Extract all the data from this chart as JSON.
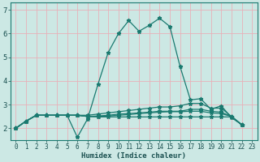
{
  "title": "",
  "xlabel": "Humidex (Indice chaleur)",
  "bg_color": "#cce8e4",
  "grid_color": "#e8b0b8",
  "line_color": "#1a7a70",
  "x_ticks": [
    0,
    1,
    2,
    3,
    4,
    5,
    6,
    7,
    8,
    9,
    10,
    11,
    12,
    13,
    14,
    15,
    16,
    17,
    18,
    19,
    20,
    21,
    22,
    23
  ],
  "ylim": [
    1.5,
    7.3
  ],
  "xlim": [
    -0.5,
    23.5
  ],
  "lines": [
    [
      2.0,
      2.3,
      2.55,
      2.55,
      2.55,
      2.55,
      1.62,
      2.4,
      3.85,
      5.2,
      6.0,
      6.55,
      6.1,
      6.35,
      6.65,
      6.3,
      4.6,
      3.2,
      3.25,
      2.8,
      2.95,
      2.45,
      2.15
    ],
    [
      2.0,
      2.3,
      2.55,
      2.55,
      2.55,
      2.55,
      2.55,
      2.55,
      2.6,
      2.65,
      2.7,
      2.75,
      2.8,
      2.85,
      2.9,
      2.9,
      2.95,
      3.05,
      3.05,
      2.85,
      2.85,
      2.5,
      2.15
    ],
    [
      2.0,
      2.3,
      2.55,
      2.55,
      2.55,
      2.55,
      2.55,
      2.5,
      2.5,
      2.52,
      2.55,
      2.58,
      2.62,
      2.65,
      2.68,
      2.7,
      2.7,
      2.72,
      2.72,
      2.65,
      2.62,
      2.5,
      2.15
    ],
    [
      2.0,
      2.3,
      2.55,
      2.55,
      2.55,
      2.55,
      2.55,
      2.5,
      2.48,
      2.48,
      2.48,
      2.48,
      2.48,
      2.48,
      2.48,
      2.48,
      2.48,
      2.48,
      2.48,
      2.48,
      2.48,
      2.48,
      2.15
    ],
    [
      2.0,
      2.3,
      2.55,
      2.55,
      2.55,
      2.55,
      2.55,
      2.5,
      2.52,
      2.55,
      2.6,
      2.62,
      2.65,
      2.68,
      2.72,
      2.72,
      2.72,
      2.8,
      2.8,
      2.72,
      2.68,
      2.5,
      2.15
    ]
  ],
  "marker": "*",
  "markersize": 3.5,
  "linewidth": 0.9,
  "font_color": "#1a5050",
  "tick_fontsize": 5.5,
  "label_fontsize": 6.5
}
